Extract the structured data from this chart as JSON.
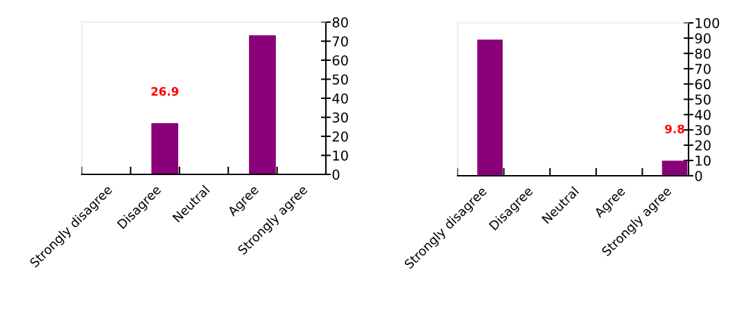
{
  "chart_data": [
    {
      "type": "bar",
      "categories": [
        "Strongly disagree",
        "Disagree",
        "Neutral",
        "Agree",
        "Strongly agree"
      ],
      "values": [
        0,
        26.9,
        0,
        73.1,
        0
      ],
      "value_labels": [
        null,
        "26.9",
        null,
        null,
        null
      ],
      "color": "#8a0078",
      "ylim": [
        0,
        80
      ],
      "yticks": [
        0,
        10,
        20,
        30,
        40,
        50,
        60,
        70,
        80
      ],
      "grid": false,
      "legend": false
    },
    {
      "type": "bar",
      "categories": [
        "Strongly disagree",
        "Disagree",
        "Neutral",
        "Agree",
        "Strongly agree"
      ],
      "values": [
        89,
        0,
        0,
        0,
        9.8
      ],
      "value_labels": [
        null,
        null,
        null,
        null,
        "9.8"
      ],
      "color": "#8a0078",
      "ylim": [
        0,
        100
      ],
      "yticks": [
        0,
        10,
        20,
        30,
        40,
        50,
        60,
        70,
        80,
        90,
        100
      ],
      "grid": false,
      "legend": false
    }
  ]
}
